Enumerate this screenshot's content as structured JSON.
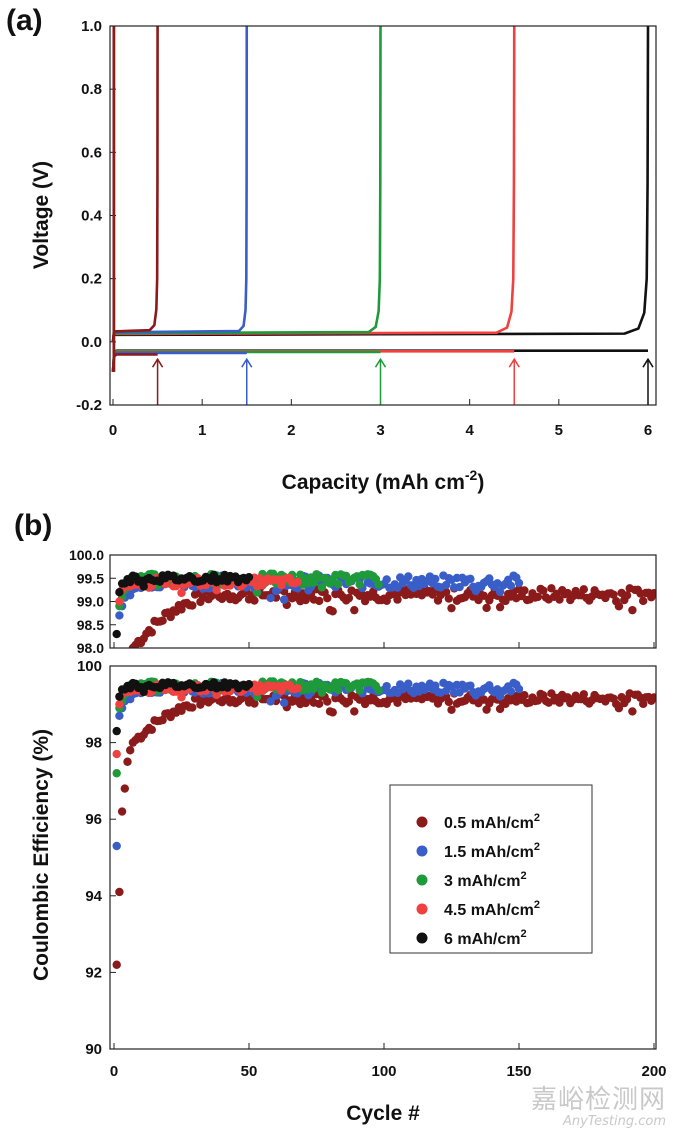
{
  "chart_data": [
    {
      "id": "a",
      "panel_label": "(a)",
      "type": "line",
      "xlabel_main": "Capacity (mAh cm",
      "xlabel_sup": "-2",
      "xlabel_end": ")",
      "ylabel": "Voltage (V)",
      "xlim": [
        0,
        6.1
      ],
      "ylim": [
        -0.2,
        1.0
      ],
      "xticks": [
        "0",
        "1",
        "2",
        "3",
        "4",
        "5",
        "6"
      ],
      "yticks": [
        "-0.2",
        "0.0",
        "0.2",
        "0.4",
        "0.6",
        "0.8",
        "1.0"
      ],
      "series": [
        {
          "name": "0.5 mAh/cm2",
          "color": "#8b1a1a",
          "capacity": 0.5,
          "charge_plateau": 0.033,
          "discharge_plateau": -0.04
        },
        {
          "name": "1.5 mAh/cm2",
          "color": "#3a5ec8",
          "capacity": 1.5,
          "charge_plateau": 0.03,
          "discharge_plateau": -0.035
        },
        {
          "name": "3 mAh/cm2",
          "color": "#1f9a3a",
          "capacity": 3.0,
          "charge_plateau": 0.027,
          "discharge_plateau": -0.032
        },
        {
          "name": "4.5 mAh/cm2",
          "color": "#f04040",
          "capacity": 4.5,
          "charge_plateau": 0.025,
          "discharge_plateau": -0.03
        },
        {
          "name": "6 mAh/cm2",
          "color": "#111111",
          "capacity": 6.0,
          "charge_plateau": 0.022,
          "discharge_plateau": -0.028
        }
      ],
      "arrows": [
        {
          "x": 0.5,
          "color": "#8b1a1a"
        },
        {
          "x": 1.5,
          "color": "#3a5ec8"
        },
        {
          "x": 3.0,
          "color": "#1f9a3a"
        },
        {
          "x": 4.5,
          "color": "#f04040"
        },
        {
          "x": 6.0,
          "color": "#111111"
        }
      ]
    },
    {
      "id": "b",
      "panel_label": "(b)",
      "type": "scatter",
      "xlabel": "Cycle #",
      "ylabel": "Coulombic Efficiency (%)",
      "xlim": [
        0,
        200
      ],
      "xticks": [
        "0",
        "50",
        "100",
        "150",
        "200"
      ],
      "inset": {
        "ylim": [
          98.0,
          100.0
        ],
        "yticks": [
          "98.0",
          "98.5",
          "99.0",
          "99.5",
          "100.0"
        ]
      },
      "main": {
        "ylim": [
          90,
          100
        ],
        "yticks": [
          "90",
          "92",
          "94",
          "96",
          "98",
          "100"
        ]
      },
      "legend_position": "lower-right",
      "series": [
        {
          "name": "0.5 mAh/cm",
          "sup": "2",
          "color": "#8b1a1a",
          "cycles": 200,
          "first_values": [
            92.2,
            94.1,
            96.2,
            96.8,
            97.5,
            97.8,
            98.0
          ],
          "steady": 99.15,
          "ramp_end": 40,
          "noise": 0.12
        },
        {
          "name": "1.5 mAh/cm",
          "sup": "2",
          "color": "#3a5ec8",
          "cycles": 150,
          "first_values": [
            95.3,
            98.7,
            98.9
          ],
          "steady": 99.42,
          "ramp_end": 10,
          "noise": 0.12
        },
        {
          "name": "3 mAh/cm",
          "sup": "2",
          "color": "#1f9a3a",
          "cycles": 98,
          "first_values": [
            97.2,
            98.9
          ],
          "steady": 99.48,
          "ramp_end": 8,
          "noise": 0.1
        },
        {
          "name": "4.5 mAh/cm",
          "sup": "2",
          "color": "#f04040",
          "cycles": 68,
          "first_values": [
            97.7,
            99.0
          ],
          "steady": 99.42,
          "ramp_end": 6,
          "noise": 0.08
        },
        {
          "name": "6 mAh/cm",
          "sup": "2",
          "color": "#111111",
          "cycles": 50,
          "first_values": [
            98.3,
            99.2
          ],
          "steady": 99.5,
          "ramp_end": 6,
          "noise": 0.07
        }
      ]
    }
  ],
  "watermark": {
    "text_cn": "嘉峪检测网",
    "text_en": "AnyTesting.com"
  }
}
